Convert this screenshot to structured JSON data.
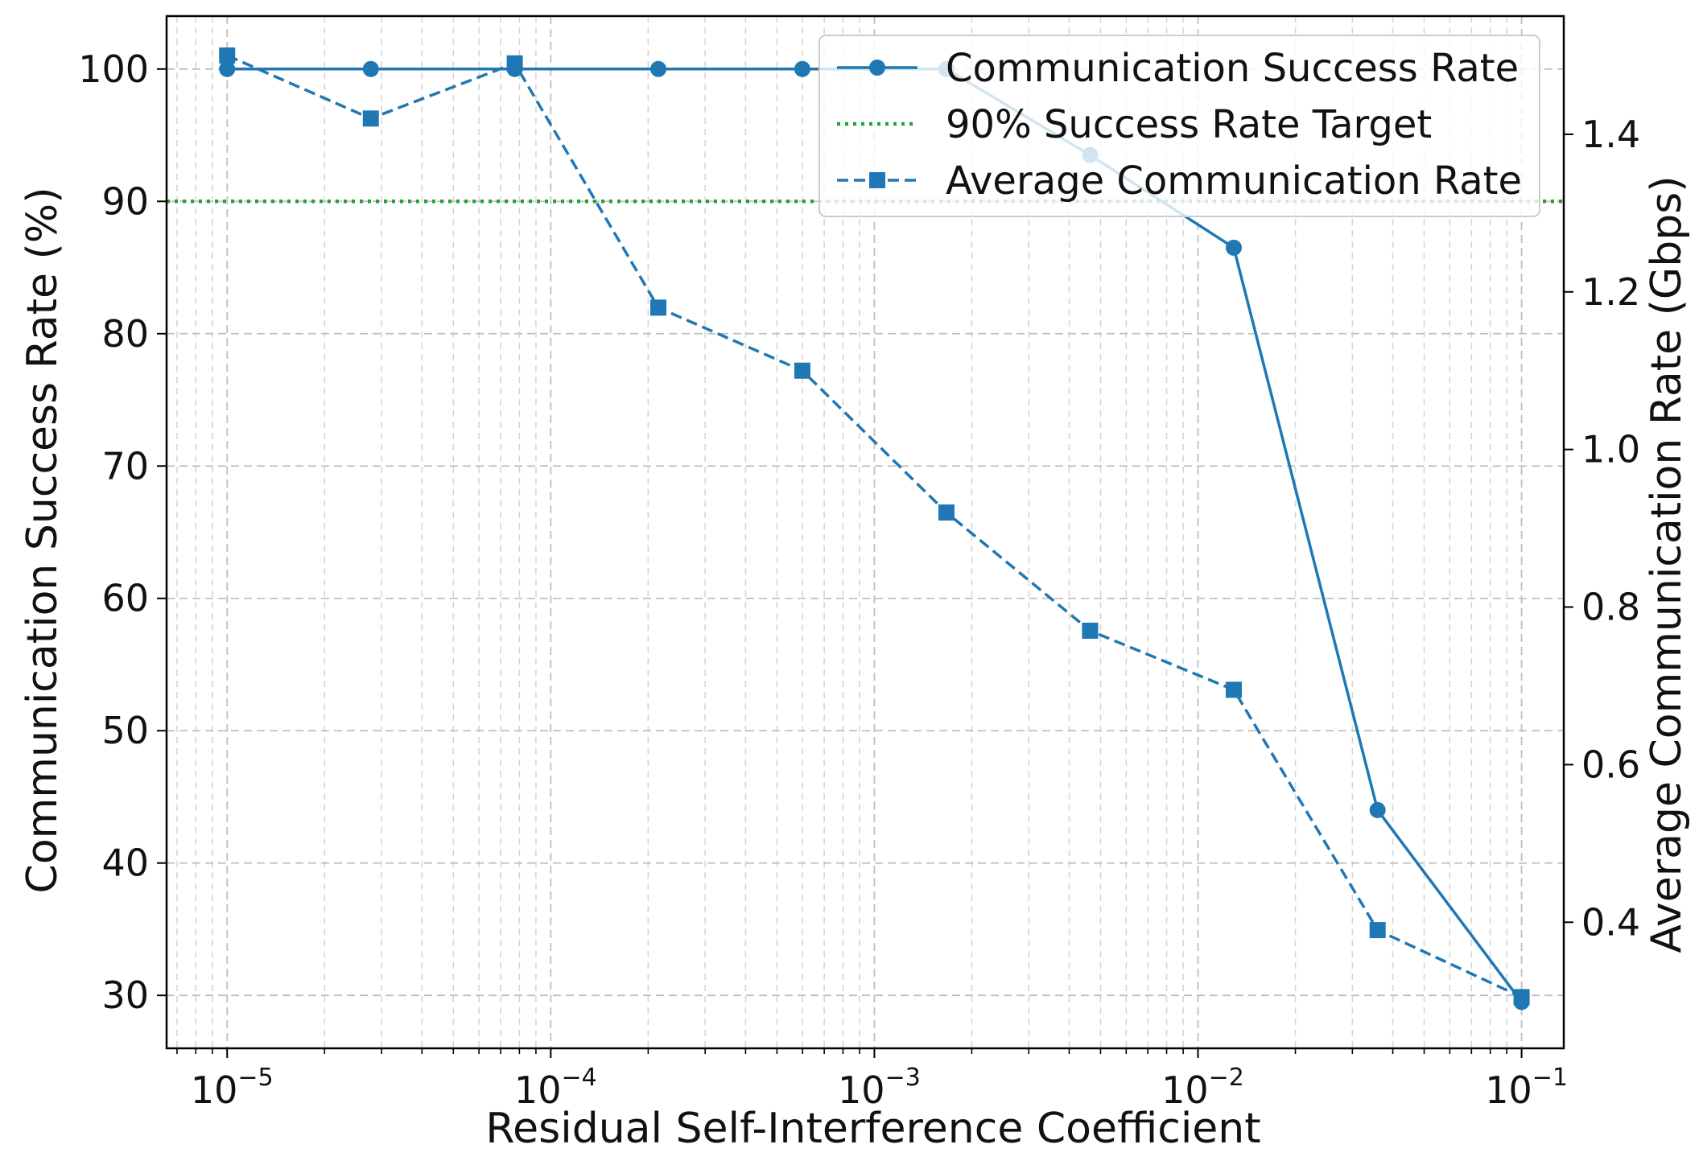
{
  "chart_data": {
    "type": "line",
    "title": "",
    "xlabel": "Residual Self-Interference Coefficient",
    "ylabel": "Communication Success Rate (%)",
    "y2label": "Average Communication Rate (Gbps)",
    "xscale": "log",
    "xlim": [
      6.5e-06,
      0.135
    ],
    "ylim": [
      26,
      104
    ],
    "y2lim": [
      0.24,
      1.55
    ],
    "grid": true,
    "legend_position": "top-right",
    "x": [
      1e-05,
      2.78e-05,
      7.74e-05,
      0.000215,
      0.000599,
      0.00167,
      0.00464,
      0.0129,
      0.0359,
      0.1
    ],
    "x_ticks": [
      {
        "value": 1e-05,
        "base": "10",
        "exp": "−5"
      },
      {
        "value": 0.0001,
        "base": "10",
        "exp": "−4"
      },
      {
        "value": 0.001,
        "base": "10",
        "exp": "−3"
      },
      {
        "value": 0.01,
        "base": "10",
        "exp": "−2"
      },
      {
        "value": 0.1,
        "base": "10",
        "exp": "−1"
      }
    ],
    "y_ticks": [
      "30",
      "40",
      "50",
      "60",
      "70",
      "80",
      "90",
      "100"
    ],
    "y2_ticks": [
      "0.4",
      "0.6",
      "0.8",
      "1.0",
      "1.2",
      "1.4"
    ],
    "series": [
      {
        "name": "Communication Success Rate",
        "axis": "left",
        "style": "solid",
        "marker": "circle",
        "color": "#1f77b4",
        "values": [
          100,
          100,
          100,
          100,
          100,
          100,
          93.5,
          86.5,
          44,
          29.5
        ]
      },
      {
        "name": "90% Success Rate Target",
        "axis": "left",
        "style": "dotted",
        "marker": "none",
        "color": "#2ca02c",
        "value": 90
      },
      {
        "name": "Average Communication Rate",
        "axis": "right",
        "style": "dashed",
        "marker": "square",
        "color": "#1f77b4",
        "values": [
          1.5,
          1.42,
          1.49,
          1.18,
          1.1,
          0.92,
          0.77,
          0.695,
          0.39,
          0.305
        ]
      }
    ]
  }
}
